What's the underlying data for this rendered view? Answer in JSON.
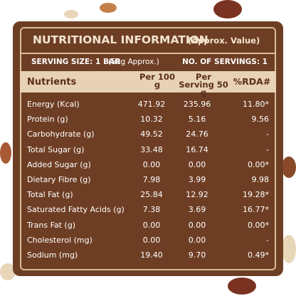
{
  "header": {
    "title": "NUTRITIONAL INFORMATION",
    "subtitle": "(Approx. Value)"
  },
  "serving": {
    "size": "SERVING SIZE: 1 BAR",
    "size_note": "(50g Approx.)",
    "count": "NO. OF SERVINGS: 1"
  },
  "table": {
    "columns": [
      "Nutrients",
      "Per 100 g",
      "Per Serving 50 g",
      "%RDA#"
    ],
    "rows": [
      [
        "Energy (Kcal)",
        "471.92",
        "235.96",
        "11.80*"
      ],
      [
        "Protein (g)",
        "10.32",
        "5.16",
        "9.56"
      ],
      [
        "Carbohydrate (g)",
        "49.52",
        "24.76",
        "-"
      ],
      [
        "Total Sugar (g)",
        "33.48",
        "16.74",
        "-"
      ],
      [
        "Added Sugar (g)",
        "0.00",
        "0.00",
        "0.00*"
      ],
      [
        "Dietary Fibre (g)",
        "7.98",
        "3.99",
        "9.98"
      ],
      [
        "Total Fat (g)",
        "25.84",
        "12.92",
        "19.28*"
      ],
      [
        "Saturated Fatty Acids (g)",
        "7.38",
        "3.69",
        "16.77*"
      ],
      [
        "Trans Fat (g)",
        "0.00",
        "0.00",
        "0.00*"
      ],
      [
        "Cholesterol (mg)",
        "0.00",
        "0.00",
        "-"
      ],
      [
        "Sodium (mg)",
        "19.40",
        "9.70",
        "0.49*"
      ]
    ]
  }
}
